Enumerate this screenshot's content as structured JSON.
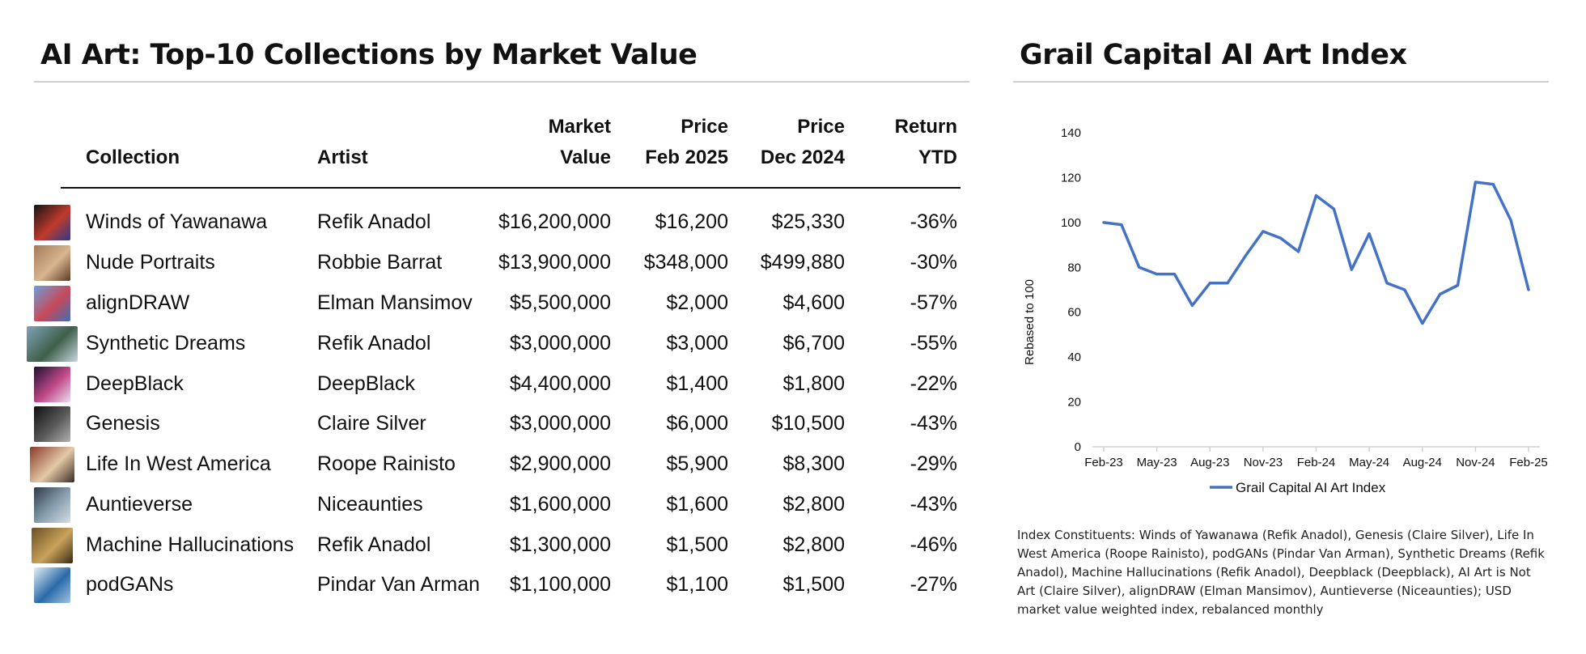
{
  "left_panel": {
    "title": "AI Art: Top-10 Collections by Market Value",
    "headers": {
      "collection": "Collection",
      "artist": "Artist",
      "market_value_1": "Market",
      "market_value_2": "Value",
      "price_feb_1": "Price",
      "price_feb_2": "Feb 2025",
      "price_dec_1": "Price",
      "price_dec_2": "Dec 2024",
      "return_1": "Return",
      "return_2": "YTD"
    },
    "rows": [
      {
        "collection": "Winds of Yawanawa",
        "artist": "Refik Anadol",
        "market_value": "$16,200,000",
        "price_feb": "$16,200",
        "price_dec": "$25,330",
        "return_ytd": "-36%",
        "thumb_colors": [
          "#141414",
          "#c0392b",
          "#2a3c8a"
        ]
      },
      {
        "collection": "Nude Portraits",
        "artist": "Robbie Barrat",
        "market_value": "$13,900,000",
        "price_feb": "$348,000",
        "price_dec": "$499,880",
        "return_ytd": "-30%",
        "thumb_colors": [
          "#a27b5a",
          "#d8b48f",
          "#5a3b26"
        ]
      },
      {
        "collection": "alignDRAW",
        "artist": "Elman Mansimov",
        "market_value": "$5,500,000",
        "price_feb": "$2,000",
        "price_dec": "$4,600",
        "return_ytd": "-57%",
        "thumb_colors": [
          "#6e9fd4",
          "#c7495a",
          "#3d6fb5"
        ]
      },
      {
        "collection": "Synthetic Dreams",
        "artist": "Refik Anadol",
        "market_value": "$3,000,000",
        "price_feb": "$3,000",
        "price_dec": "$6,700",
        "return_ytd": "-55%",
        "thumb_colors": [
          "#7ea3b8",
          "#3f5f4a",
          "#c9d7df"
        ]
      },
      {
        "collection": "DeepBlack",
        "artist": "DeepBlack",
        "market_value": "$4,400,000",
        "price_feb": "$1,400",
        "price_dec": "$1,800",
        "return_ytd": "-22%",
        "thumb_colors": [
          "#1b1030",
          "#c24a8a",
          "#e8e0f0"
        ]
      },
      {
        "collection": "Genesis",
        "artist": "Claire Silver",
        "market_value": "$3,000,000",
        "price_feb": "$6,000",
        "price_dec": "$10,500",
        "return_ytd": "-43%",
        "thumb_colors": [
          "#0f0f0f",
          "#5a5a5a",
          "#b0b0b0"
        ]
      },
      {
        "collection": "Life In West America",
        "artist": "Roope Rainisto",
        "market_value": "$2,900,000",
        "price_feb": "$5,900",
        "price_dec": "$8,300",
        "return_ytd": "-29%",
        "thumb_colors": [
          "#8a3a2a",
          "#e3c9a6",
          "#3a2a22"
        ]
      },
      {
        "collection": "Auntieverse",
        "artist": "Niceaunties",
        "market_value": "$1,600,000",
        "price_feb": "$1,600",
        "price_dec": "$2,800",
        "return_ytd": "-43%",
        "thumb_colors": [
          "#2d3a46",
          "#8aa1b1",
          "#d4dde3"
        ]
      },
      {
        "collection": "Machine Hallucinations",
        "artist": "Refik Anadol",
        "market_value": "$1,300,000",
        "price_feb": "$1,500",
        "price_dec": "$2,800",
        "return_ytd": "-46%",
        "thumb_colors": [
          "#6b4f22",
          "#c9a25a",
          "#3a2a12"
        ]
      },
      {
        "collection": "podGANs",
        "artist": "Pindar Van Arman",
        "market_value": "$1,100,000",
        "price_feb": "$1,100",
        "price_dec": "$1,500",
        "return_ytd": "-27%",
        "thumb_colors": [
          "#e6eef5",
          "#2a6aa8",
          "#9fc3e0"
        ]
      }
    ]
  },
  "right_panel": {
    "title": "Grail Capital AI Art Index",
    "footnote": "Index Constituents: Winds of Yawanawa (Refik Anadol), Genesis (Claire Silver), Life In West America (Roope Rainisto), podGANs (Pindar Van Arman), Synthetic Dreams (Refik Anadol), Machine Hallucinations (Refik Anadol), Deepblack (Deepblack), AI Art is Not Art (Claire Silver), alignDRAW (Elman Mansimov), Auntieverse (Niceaunties); USD market value weighted index, rebalanced monthly"
  },
  "chart_data": {
    "type": "line",
    "title": "Grail Capital AI Art Index",
    "ylabel": "Rebased to 100",
    "xlabel": "",
    "ylim": [
      0,
      140
    ],
    "yticks": [
      0,
      20,
      40,
      60,
      80,
      100,
      120,
      140
    ],
    "x": [
      "Feb-23",
      "Mar-23",
      "Apr-23",
      "May-23",
      "Jun-23",
      "Jul-23",
      "Aug-23",
      "Sep-23",
      "Oct-23",
      "Nov-23",
      "Dec-23",
      "Jan-24",
      "Feb-24",
      "Mar-24",
      "Apr-24",
      "May-24",
      "Jun-24",
      "Jul-24",
      "Aug-24",
      "Sep-24",
      "Oct-24",
      "Nov-24",
      "Dec-24",
      "Jan-25",
      "Feb-25"
    ],
    "xtick_labels": [
      "Feb-23",
      "May-23",
      "Aug-23",
      "Nov-23",
      "Feb-24",
      "May-24",
      "Aug-24",
      "Nov-24",
      "Feb-25"
    ],
    "series": [
      {
        "name": "Grail Capital AI Art Index",
        "color": "#4472c4",
        "values": [
          100,
          99,
          80,
          77,
          77,
          63,
          73,
          73,
          85,
          96,
          93,
          87,
          112,
          106,
          79,
          95,
          73,
          70,
          55,
          68,
          72,
          118,
          117,
          101,
          70
        ]
      }
    ],
    "grid": false,
    "legend": "bottom"
  }
}
